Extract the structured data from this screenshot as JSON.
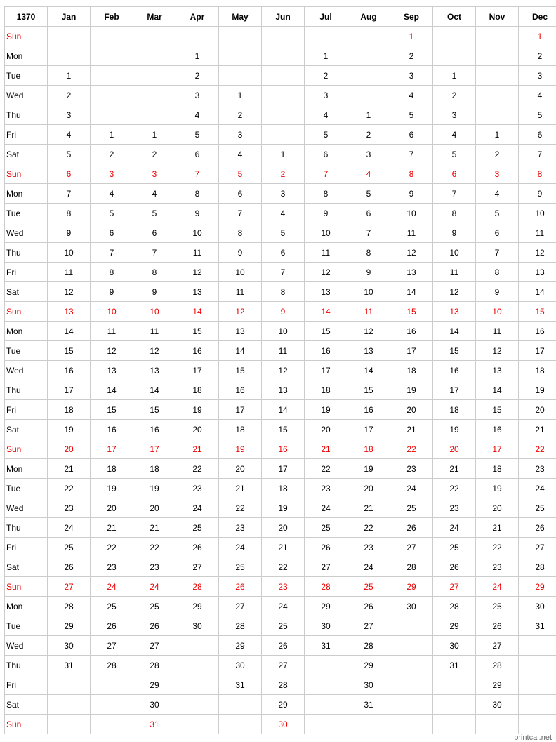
{
  "year": "1370",
  "colors": {
    "sunday": "#ee0000",
    "grid": "#cccccc"
  },
  "weekday_rows": [
    "Sun",
    "Mon",
    "Tue",
    "Wed",
    "Thu",
    "Fri",
    "Sat",
    "Sun",
    "Mon",
    "Tue",
    "Wed",
    "Thu",
    "Fri",
    "Sat",
    "Sun",
    "Mon",
    "Tue",
    "Wed",
    "Thu",
    "Fri",
    "Sat",
    "Sun",
    "Mon",
    "Tue",
    "Wed",
    "Thu",
    "Fri",
    "Sat",
    "Sun",
    "Mon",
    "Tue",
    "Wed",
    "Thu",
    "Fri",
    "Sat",
    "Sun"
  ],
  "months": [
    {
      "name": "Jan",
      "first_day": "Tue",
      "days": 31
    },
    {
      "name": "Feb",
      "first_day": "Fri",
      "days": 28
    },
    {
      "name": "Mar",
      "first_day": "Fri",
      "days": 31
    },
    {
      "name": "Apr",
      "first_day": "Mon",
      "days": 30
    },
    {
      "name": "May",
      "first_day": "Wed",
      "days": 31
    },
    {
      "name": "Jun",
      "first_day": "Sat",
      "days": 30
    },
    {
      "name": "Jul",
      "first_day": "Mon",
      "days": 31
    },
    {
      "name": "Aug",
      "first_day": "Thu",
      "days": 31
    },
    {
      "name": "Sep",
      "first_day": "Sun",
      "days": 30
    },
    {
      "name": "Oct",
      "first_day": "Tue",
      "days": 31
    },
    {
      "name": "Nov",
      "first_day": "Fri",
      "days": 30
    },
    {
      "name": "Dec",
      "first_day": "Sun",
      "days": 31
    }
  ],
  "footer": "printcal.net"
}
